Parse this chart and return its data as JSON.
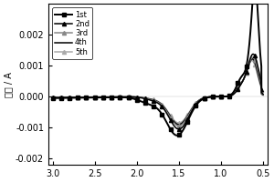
{
  "title": "",
  "xlabel": "",
  "ylabel": "电流 / A",
  "xlim": [
    3.05,
    0.45
  ],
  "ylim": [
    -0.0022,
    0.003
  ],
  "xticks": [
    3.0,
    2.5,
    2.0,
    1.5,
    1.0,
    0.5
  ],
  "yticks": [
    -0.002,
    -0.001,
    0.0,
    0.001,
    0.002
  ],
  "legend_labels": [
    "1st",
    "2nd",
    "3rd",
    "4th",
    "5th"
  ],
  "legend_colors": [
    "black",
    "black",
    "#888888",
    "black",
    "#aaaaaa"
  ],
  "legend_markers": [
    "s",
    "^",
    "^",
    "None",
    "^"
  ],
  "legend_linestyles": [
    "-",
    "-",
    "-",
    "-",
    "-"
  ],
  "background_color": "white",
  "figure_color": "white"
}
